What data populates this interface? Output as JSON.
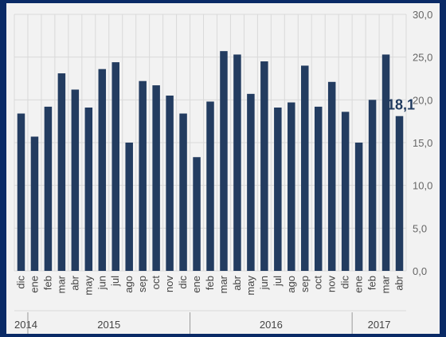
{
  "colors": {
    "background": "#0a2a66",
    "plot_bg": "#f2f2f2",
    "bar": "#233c60",
    "grid": "#d9d9d9"
  },
  "chart_data": {
    "type": "bar",
    "categories": [
      "dic",
      "ene",
      "feb",
      "mar",
      "abr",
      "may",
      "jun",
      "jul",
      "ago",
      "sep",
      "oct",
      "nov",
      "dic",
      "ene",
      "feb",
      "mar",
      "abr",
      "may",
      "jun",
      "jul",
      "ago",
      "sep",
      "oct",
      "nov",
      "dic",
      "ene",
      "feb",
      "mar",
      "abr"
    ],
    "values": [
      18.4,
      15.7,
      19.2,
      23.1,
      21.2,
      19.1,
      23.6,
      24.4,
      15.0,
      22.2,
      21.7,
      20.5,
      18.4,
      13.3,
      19.8,
      25.7,
      25.3,
      20.7,
      24.5,
      19.1,
      19.7,
      24.0,
      19.2,
      22.1,
      18.6,
      15.0,
      20.0,
      25.3,
      18.1
    ],
    "years": [
      {
        "label": "2014",
        "start": 0,
        "end": 0
      },
      {
        "label": "2015",
        "start": 1,
        "end": 12
      },
      {
        "label": "2016",
        "start": 13,
        "end": 24
      },
      {
        "label": "2017",
        "start": 25,
        "end": 28
      }
    ],
    "ylim": [
      0,
      30
    ],
    "yticks": [
      "0,0",
      "5,0",
      "10,0",
      "15,0",
      "20,0",
      "25,0",
      "30,0"
    ],
    "ytick_values": [
      0,
      5,
      10,
      15,
      20,
      25,
      30
    ],
    "last_label": "18,1",
    "axis_side": "right",
    "grid": true,
    "title": "",
    "xlabel": "",
    "ylabel": ""
  }
}
